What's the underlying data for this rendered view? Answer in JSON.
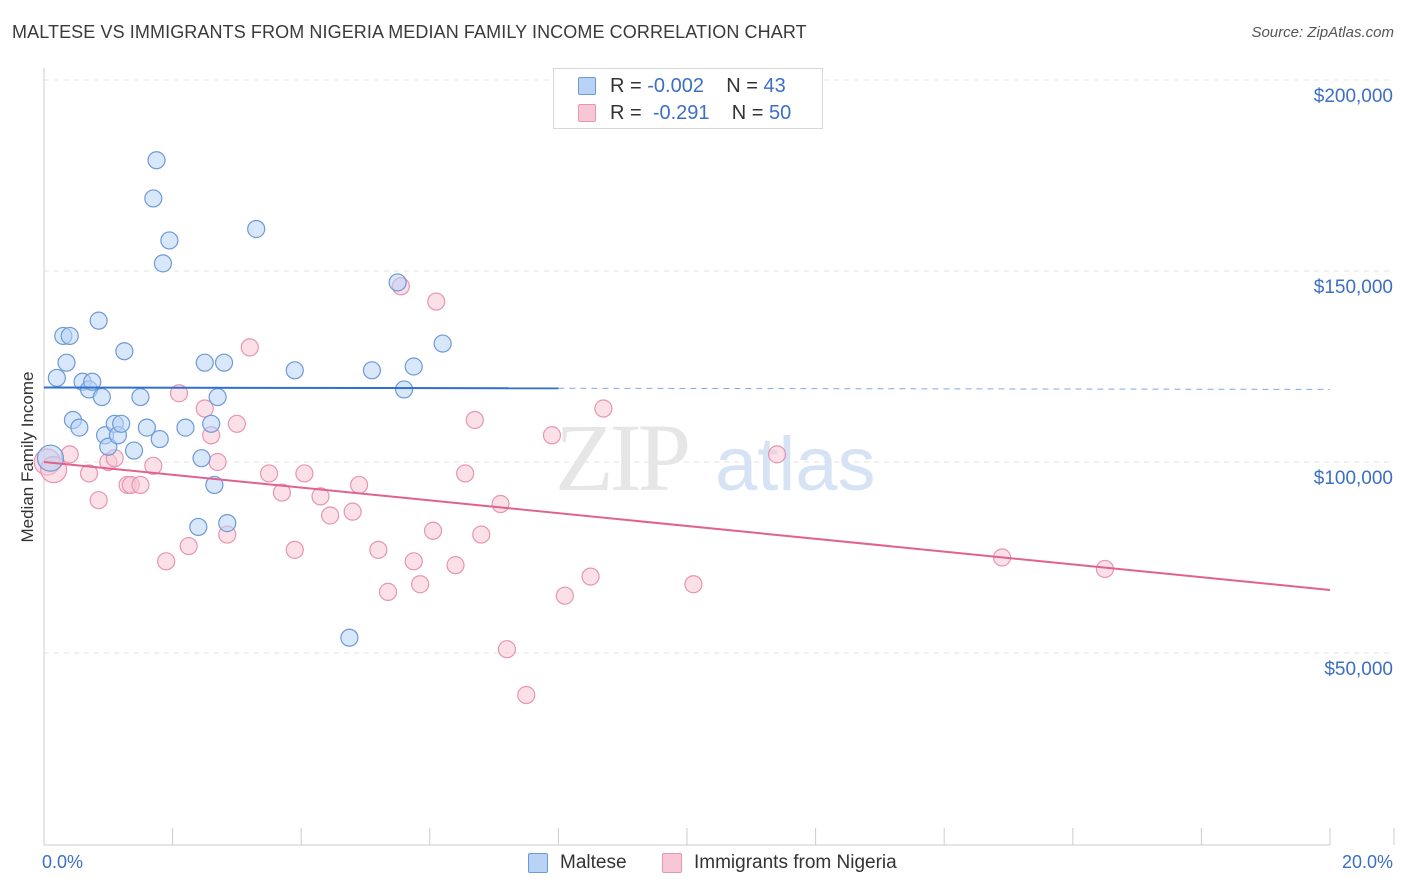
{
  "title": "MALTESE VS IMMIGRANTS FROM NIGERIA MEDIAN FAMILY INCOME CORRELATION CHART",
  "source": "Source: ZipAtlas.com",
  "watermark": {
    "zip": "ZIP",
    "atlas": "atlas"
  },
  "colors": {
    "maltese_fill": "#b8d3f5",
    "maltese_stroke": "#6d9ad6",
    "maltese_line": "#2f6fd0",
    "nigeria_fill": "#f8c7d6",
    "nigeria_stroke": "#e795b0",
    "nigeria_line": "#e0628e",
    "tick_text": "#3c6fc4"
  },
  "legend": {
    "maltese": {
      "r_label": "R =",
      "r_value": "-0.002",
      "n_label": "N =",
      "n_value": "43"
    },
    "nigeria": {
      "r_label": "R =",
      "r_value": "-0.291",
      "n_label": "N =",
      "n_value": "50"
    }
  },
  "chart_data": {
    "type": "scatter",
    "title": "MALTESE VS IMMIGRANTS FROM NIGERIA MEDIAN FAMILY INCOME CORRELATION CHART",
    "xlabel": "",
    "ylabel": "Median Family Income",
    "xlim": [
      0,
      20
    ],
    "ylim": [
      0,
      205000
    ],
    "x_tick_labels": [
      "0.0%",
      "20.0%"
    ],
    "y_tick_values": [
      50000,
      100000,
      150000,
      200000
    ],
    "y_tick_labels": [
      "$50,000",
      "$100,000",
      "$150,000",
      "$200,000"
    ],
    "grid": true,
    "legend_position": "bottom",
    "series": [
      {
        "name": "Maltese",
        "x": [
          0.1,
          0.2,
          0.3,
          0.35,
          0.4,
          0.45,
          0.55,
          0.6,
          0.7,
          0.75,
          0.85,
          0.9,
          0.95,
          1.0,
          1.1,
          1.15,
          1.2,
          1.25,
          1.4,
          1.5,
          1.6,
          1.7,
          1.75,
          1.8,
          1.85,
          1.95,
          2.2,
          2.4,
          2.45,
          2.5,
          2.6,
          2.65,
          2.7,
          2.8,
          2.85,
          3.3,
          3.9,
          4.75,
          5.1,
          5.5,
          5.6,
          5.75,
          6.2
        ],
        "y": [
          101000,
          122000,
          133000,
          126000,
          133000,
          111000,
          109000,
          121000,
          119000,
          121000,
          137000,
          117000,
          107000,
          104000,
          110000,
          107000,
          110000,
          129000,
          103000,
          117000,
          109000,
          169000,
          179000,
          106000,
          152000,
          158000,
          109000,
          83000,
          101000,
          126000,
          110000,
          94000,
          117000,
          126000,
          84000,
          161000,
          124000,
          54000,
          124000,
          147000,
          119000,
          125000,
          131000
        ]
      },
      {
        "name": "Immigrants from Nigeria",
        "x": [
          0.05,
          0.15,
          0.4,
          0.7,
          0.85,
          1.0,
          1.1,
          1.3,
          1.35,
          1.5,
          1.7,
          1.9,
          2.1,
          2.25,
          2.5,
          2.6,
          2.7,
          2.85,
          3.0,
          3.2,
          3.5,
          3.7,
          3.9,
          4.05,
          4.3,
          4.45,
          4.8,
          4.9,
          5.2,
          5.35,
          5.55,
          5.75,
          5.85,
          6.05,
          6.1,
          6.4,
          6.55,
          6.7,
          6.8,
          7.1,
          7.2,
          7.5,
          7.9,
          8.1,
          8.5,
          8.7,
          10.1,
          11.4,
          14.9,
          16.5
        ],
        "y": [
          100000,
          98000,
          102000,
          97000,
          90000,
          100000,
          101000,
          94000,
          94000,
          94000,
          99000,
          74000,
          118000,
          78000,
          114000,
          107000,
          100000,
          81000,
          110000,
          130000,
          97000,
          92000,
          77000,
          97000,
          91000,
          86000,
          87000,
          94000,
          77000,
          66000,
          146000,
          74000,
          68000,
          82000,
          142000,
          73000,
          97000,
          111000,
          81000,
          89000,
          51000,
          39000,
          107000,
          65000,
          70000,
          114000,
          68000,
          102000,
          75000,
          72000
        ]
      }
    ],
    "trend_lines": [
      {
        "name": "Maltese",
        "x": [
          0,
          8.0
        ],
        "y": [
          119500,
          119300
        ],
        "dashed_extension_to_x": 20
      },
      {
        "name": "Immigrants from Nigeria",
        "x": [
          0,
          20
        ],
        "y": [
          100000,
          66500
        ]
      }
    ]
  },
  "bottom_legend": [
    {
      "label": "Maltese"
    },
    {
      "label": "Immigrants from Nigeria"
    }
  ]
}
